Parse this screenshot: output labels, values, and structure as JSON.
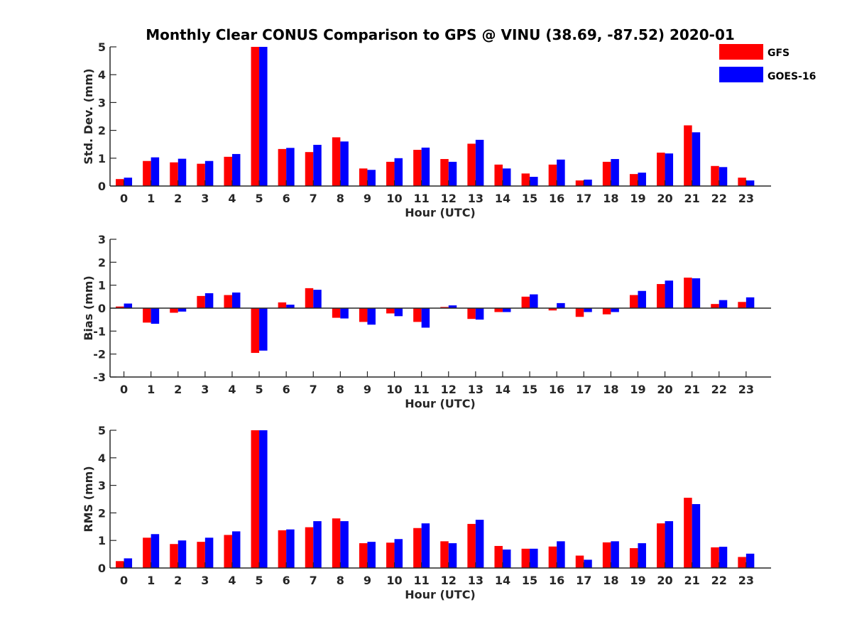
{
  "title": "Monthly Clear CONUS Comparison to GPS @ VINU (38.69, -87.52) 2020-01",
  "colors": {
    "gfs": "#ff0000",
    "goes": "#0000ff",
    "axis": "#262626"
  },
  "chart_data": [
    {
      "type": "bar",
      "xlabel": "Hour (UTC)",
      "ylabel": "Std. Dev. (mm)",
      "ylim": [
        0,
        5
      ],
      "yticks": [
        0,
        1,
        2,
        3,
        4,
        5
      ],
      "categories": [
        "0",
        "1",
        "2",
        "3",
        "4",
        "5",
        "6",
        "7",
        "8",
        "9",
        "10",
        "11",
        "12",
        "13",
        "14",
        "15",
        "16",
        "17",
        "18",
        "19",
        "20",
        "21",
        "22",
        "23"
      ],
      "legend": "top-right",
      "series": [
        {
          "name": "GFS",
          "values": [
            0.25,
            0.9,
            0.85,
            0.8,
            1.05,
            5.0,
            1.33,
            1.22,
            1.75,
            0.63,
            0.87,
            1.3,
            0.97,
            1.52,
            0.77,
            0.45,
            0.77,
            0.2,
            0.87,
            0.43,
            1.2,
            2.18,
            0.72,
            0.3
          ]
        },
        {
          "name": "GOES-16",
          "values": [
            0.3,
            1.03,
            0.98,
            0.9,
            1.15,
            5.0,
            1.37,
            1.48,
            1.6,
            0.58,
            1.0,
            1.38,
            0.87,
            1.66,
            0.63,
            0.33,
            0.95,
            0.23,
            0.97,
            0.48,
            1.17,
            1.93,
            0.68,
            0.2
          ]
        }
      ]
    },
    {
      "type": "bar",
      "xlabel": "Hour (UTC)",
      "ylabel": "Bias (mm)",
      "ylim": [
        -3,
        3
      ],
      "yticks": [
        -3,
        -2,
        -1,
        0,
        1,
        2,
        3
      ],
      "categories": [
        "0",
        "1",
        "2",
        "3",
        "4",
        "5",
        "6",
        "7",
        "8",
        "9",
        "10",
        "11",
        "12",
        "13",
        "14",
        "15",
        "16",
        "17",
        "18",
        "19",
        "20",
        "21",
        "22",
        "23"
      ],
      "series": [
        {
          "name": "GFS",
          "values": [
            0.07,
            -0.63,
            -0.2,
            0.53,
            0.57,
            -1.95,
            0.25,
            0.87,
            -0.42,
            -0.6,
            -0.23,
            -0.6,
            0.05,
            -0.47,
            -0.17,
            0.5,
            -0.1,
            -0.38,
            -0.27,
            0.57,
            1.05,
            1.33,
            0.18,
            0.27
          ]
        },
        {
          "name": "GOES-16",
          "values": [
            0.2,
            -0.68,
            -0.15,
            0.65,
            0.68,
            -1.85,
            0.15,
            0.8,
            -0.45,
            -0.72,
            -0.35,
            -0.85,
            0.12,
            -0.5,
            -0.17,
            0.6,
            0.22,
            -0.17,
            -0.17,
            0.75,
            1.2,
            1.3,
            0.35,
            0.47
          ]
        }
      ]
    },
    {
      "type": "bar",
      "xlabel": "Hour (UTC)",
      "ylabel": "RMS (mm)",
      "ylim": [
        0,
        5
      ],
      "yticks": [
        0,
        1,
        2,
        3,
        4,
        5
      ],
      "categories": [
        "0",
        "1",
        "2",
        "3",
        "4",
        "5",
        "6",
        "7",
        "8",
        "9",
        "10",
        "11",
        "12",
        "13",
        "14",
        "15",
        "16",
        "17",
        "18",
        "19",
        "20",
        "21",
        "22",
        "23"
      ],
      "series": [
        {
          "name": "GFS",
          "values": [
            0.25,
            1.1,
            0.87,
            0.95,
            1.2,
            5.0,
            1.37,
            1.48,
            1.8,
            0.9,
            0.92,
            1.45,
            0.97,
            1.6,
            0.8,
            0.7,
            0.78,
            0.45,
            0.93,
            0.72,
            1.62,
            2.55,
            0.75,
            0.4
          ]
        },
        {
          "name": "GOES-16",
          "values": [
            0.35,
            1.23,
            1.0,
            1.1,
            1.33,
            5.0,
            1.4,
            1.7,
            1.7,
            0.95,
            1.05,
            1.62,
            0.9,
            1.75,
            0.67,
            0.7,
            0.97,
            0.3,
            0.97,
            0.9,
            1.7,
            2.32,
            0.77,
            0.52
          ]
        }
      ]
    }
  ]
}
